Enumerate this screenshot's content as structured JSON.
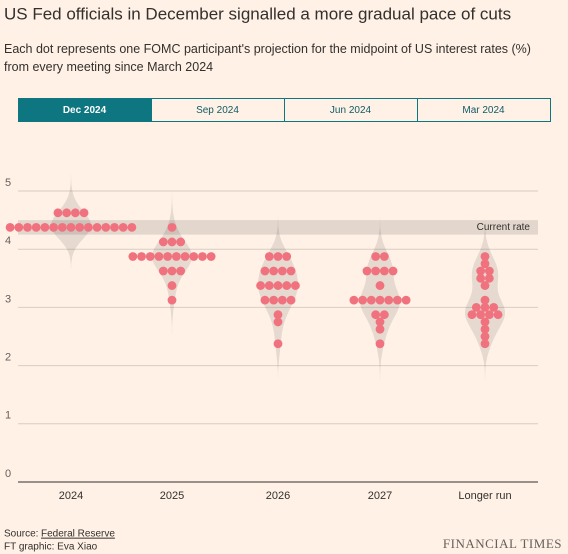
{
  "title": "US Fed officials in December signalled a more gradual pace of cuts",
  "subtitle": "Each dot represents one FOMC participant's projection for the midpoint of US interest rates (%) from every meeting since March 2024",
  "tabs": [
    "Dec 2024",
    "Sep 2024",
    "Jun 2024",
    "Mar 2024"
  ],
  "chart_data": {
    "type": "dotplot",
    "categories": [
      "2024",
      "2025",
      "2026",
      "2027",
      "Longer run"
    ],
    "values": [
      [
        4.375,
        4.375,
        4.375,
        4.375,
        4.375,
        4.375,
        4.375,
        4.375,
        4.375,
        4.375,
        4.375,
        4.375,
        4.375,
        4.375,
        4.375,
        4.625,
        4.625,
        4.625,
        4.625
      ],
      [
        4.375,
        4.125,
        4.125,
        4.125,
        3.875,
        3.875,
        3.875,
        3.875,
        3.875,
        3.875,
        3.875,
        3.875,
        3.875,
        3.875,
        3.625,
        3.625,
        3.625,
        3.375,
        3.125
      ],
      [
        3.875,
        3.875,
        3.875,
        3.625,
        3.625,
        3.625,
        3.625,
        3.375,
        3.375,
        3.375,
        3.375,
        3.375,
        3.125,
        3.125,
        3.125,
        3.125,
        2.875,
        2.75,
        2.375
      ],
      [
        3.875,
        3.875,
        3.625,
        3.625,
        3.625,
        3.625,
        3.375,
        3.125,
        3.125,
        3.125,
        3.125,
        3.125,
        3.125,
        3.125,
        2.875,
        2.875,
        2.75,
        2.625,
        2.375
      ],
      [
        3.875,
        3.75,
        3.625,
        3.625,
        3.5,
        3.5,
        3.375,
        3.125,
        3.0,
        3.0,
        3.0,
        2.875,
        2.875,
        2.875,
        2.875,
        2.75,
        2.625,
        2.5,
        2.375
      ]
    ],
    "color": "#f0727f",
    "ylim": [
      0,
      5
    ],
    "yticks": [
      0,
      1,
      2,
      3,
      4,
      5
    ],
    "grid": true,
    "current_rate": {
      "label": "Current rate",
      "range": [
        4.25,
        4.5
      ]
    }
  },
  "footer": {
    "source_prefix": "Source:",
    "source": "Federal Reserve",
    "credit": "FT graphic: Eva Xiao",
    "brand": "FINANCIAL TIMES"
  }
}
